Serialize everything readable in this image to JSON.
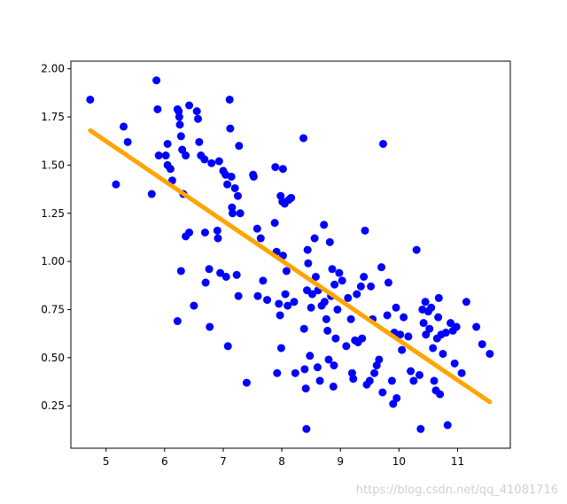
{
  "chart_data": {
    "type": "scatter",
    "xlim": [
      4.4,
      11.9
    ],
    "ylim": [
      0.03,
      2.04
    ],
    "xticks": [
      5,
      6,
      7,
      8,
      9,
      10,
      11
    ],
    "yticks": [
      0.25,
      0.5,
      0.75,
      1.0,
      1.25,
      1.5,
      1.75,
      2.0
    ],
    "grid": false,
    "legend": "none",
    "point_color": "#0000ff",
    "line_color": "#ffa500",
    "points": [
      [
        4.73,
        1.84
      ],
      [
        5.17,
        1.4
      ],
      [
        5.3,
        1.7
      ],
      [
        5.37,
        1.62
      ],
      [
        5.78,
        1.35
      ],
      [
        5.86,
        1.94
      ],
      [
        5.88,
        1.79
      ],
      [
        5.9,
        1.55
      ],
      [
        6.02,
        1.55
      ],
      [
        6.05,
        1.61
      ],
      [
        6.05,
        1.5
      ],
      [
        6.1,
        1.48
      ],
      [
        6.13,
        1.42
      ],
      [
        6.22,
        1.79
      ],
      [
        6.24,
        1.78
      ],
      [
        6.25,
        1.75
      ],
      [
        6.26,
        1.71
      ],
      [
        6.28,
        1.65
      ],
      [
        6.3,
        1.58
      ],
      [
        6.32,
        1.35
      ],
      [
        6.22,
        0.69
      ],
      [
        6.28,
        0.95
      ],
      [
        6.36,
        1.13
      ],
      [
        6.36,
        1.55
      ],
      [
        6.42,
        1.81
      ],
      [
        6.42,
        1.15
      ],
      [
        6.5,
        0.77
      ],
      [
        6.55,
        1.78
      ],
      [
        6.57,
        1.74
      ],
      [
        6.59,
        1.62
      ],
      [
        6.62,
        1.55
      ],
      [
        6.68,
        1.53
      ],
      [
        6.69,
        1.15
      ],
      [
        6.7,
        0.89
      ],
      [
        6.76,
        0.96
      ],
      [
        6.77,
        0.66
      ],
      [
        6.8,
        1.51
      ],
      [
        6.9,
        1.16
      ],
      [
        6.91,
        1.12
      ],
      [
        6.93,
        1.52
      ],
      [
        6.95,
        0.94
      ],
      [
        7.0,
        1.47
      ],
      [
        7.04,
        1.45
      ],
      [
        7.05,
        0.92
      ],
      [
        7.07,
        1.4
      ],
      [
        7.08,
        0.56
      ],
      [
        7.11,
        1.84
      ],
      [
        7.12,
        1.69
      ],
      [
        7.14,
        1.44
      ],
      [
        7.15,
        1.28
      ],
      [
        7.16,
        1.25
      ],
      [
        7.2,
        1.38
      ],
      [
        7.23,
        0.93
      ],
      [
        7.25,
        1.34
      ],
      [
        7.26,
        0.82
      ],
      [
        7.27,
        1.6
      ],
      [
        7.29,
        1.25
      ],
      [
        7.4,
        0.37
      ],
      [
        7.51,
        1.45
      ],
      [
        7.52,
        1.44
      ],
      [
        7.58,
        1.17
      ],
      [
        7.59,
        0.82
      ],
      [
        7.64,
        1.12
      ],
      [
        7.68,
        0.9
      ],
      [
        7.75,
        0.8
      ],
      [
        7.88,
        1.2
      ],
      [
        7.89,
        1.49
      ],
      [
        7.91,
        1.05
      ],
      [
        7.92,
        0.42
      ],
      [
        7.95,
        0.78
      ],
      [
        7.97,
        0.72
      ],
      [
        7.98,
        1.34
      ],
      [
        7.99,
        0.55
      ],
      [
        8.01,
        1.31
      ],
      [
        8.02,
        1.48
      ],
      [
        8.02,
        1.03
      ],
      [
        8.05,
        1.3
      ],
      [
        8.06,
        0.83
      ],
      [
        8.08,
        0.95
      ],
      [
        8.1,
        0.77
      ],
      [
        8.12,
        1.32
      ],
      [
        8.16,
        1.33
      ],
      [
        8.21,
        0.79
      ],
      [
        8.23,
        0.42
      ],
      [
        8.37,
        1.64
      ],
      [
        8.38,
        0.65
      ],
      [
        8.39,
        0.44
      ],
      [
        8.41,
        0.34
      ],
      [
        8.42,
        0.13
      ],
      [
        8.43,
        0.85
      ],
      [
        8.44,
        1.06
      ],
      [
        8.45,
        0.99
      ],
      [
        8.48,
        0.51
      ],
      [
        8.5,
        0.76
      ],
      [
        8.52,
        0.83
      ],
      [
        8.56,
        1.12
      ],
      [
        8.58,
        0.92
      ],
      [
        8.61,
        0.45
      ],
      [
        8.62,
        0.85
      ],
      [
        8.65,
        0.38
      ],
      [
        8.68,
        0.77
      ],
      [
        8.72,
        1.19
      ],
      [
        8.73,
        0.79
      ],
      [
        8.76,
        0.7
      ],
      [
        8.78,
        0.64
      ],
      [
        8.8,
        0.49
      ],
      [
        8.82,
        1.1
      ],
      [
        8.84,
        0.82
      ],
      [
        8.86,
        0.96
      ],
      [
        8.88,
        0.35
      ],
      [
        8.89,
        0.46
      ],
      [
        8.9,
        0.88
      ],
      [
        8.92,
        0.6
      ],
      [
        8.95,
        0.75
      ],
      [
        8.98,
        0.94
      ],
      [
        9.03,
        0.9
      ],
      [
        9.1,
        0.56
      ],
      [
        9.13,
        0.81
      ],
      [
        9.18,
        0.7
      ],
      [
        9.2,
        0.42
      ],
      [
        9.22,
        0.39
      ],
      [
        9.25,
        0.59
      ],
      [
        9.28,
        0.83
      ],
      [
        9.3,
        0.58
      ],
      [
        9.35,
        0.87
      ],
      [
        9.37,
        0.6
      ],
      [
        9.4,
        0.92
      ],
      [
        9.42,
        1.16
      ],
      [
        9.45,
        0.36
      ],
      [
        9.5,
        0.38
      ],
      [
        9.52,
        0.87
      ],
      [
        9.55,
        0.7
      ],
      [
        9.58,
        0.42
      ],
      [
        9.62,
        0.46
      ],
      [
        9.66,
        0.49
      ],
      [
        9.7,
        0.97
      ],
      [
        9.72,
        0.32
      ],
      [
        9.73,
        1.61
      ],
      [
        9.8,
        0.72
      ],
      [
        9.82,
        0.89
      ],
      [
        9.88,
        0.38
      ],
      [
        9.9,
        0.26
      ],
      [
        9.92,
        0.63
      ],
      [
        9.95,
        0.76
      ],
      [
        9.96,
        0.29
      ],
      [
        10.02,
        0.62
      ],
      [
        10.05,
        0.54
      ],
      [
        10.08,
        0.71
      ],
      [
        10.16,
        0.61
      ],
      [
        10.2,
        0.43
      ],
      [
        10.25,
        0.38
      ],
      [
        10.3,
        1.06
      ],
      [
        10.35,
        0.41
      ],
      [
        10.4,
        0.75
      ],
      [
        10.42,
        0.68
      ],
      [
        10.45,
        0.79
      ],
      [
        10.46,
        0.62
      ],
      [
        10.5,
        0.74
      ],
      [
        10.52,
        0.65
      ],
      [
        10.55,
        0.76
      ],
      [
        10.58,
        0.55
      ],
      [
        10.6,
        0.38
      ],
      [
        10.63,
        0.33
      ],
      [
        10.65,
        0.6
      ],
      [
        10.67,
        0.71
      ],
      [
        10.68,
        0.81
      ],
      [
        10.7,
        0.31
      ],
      [
        10.72,
        0.62
      ],
      [
        10.75,
        0.52
      ],
      [
        10.8,
        0.63
      ],
      [
        10.83,
        0.15
      ],
      [
        10.88,
        0.68
      ],
      [
        10.92,
        0.64
      ],
      [
        10.95,
        0.47
      ],
      [
        10.98,
        0.66
      ],
      [
        11.07,
        0.42
      ],
      [
        11.15,
        0.79
      ],
      [
        11.32,
        0.66
      ],
      [
        11.42,
        0.57
      ],
      [
        11.55,
        0.52
      ],
      [
        10.37,
        0.13
      ]
    ],
    "fit_line": {
      "x": [
        4.73,
        11.55
      ],
      "y": [
        1.68,
        0.27
      ]
    }
  },
  "watermark": "https://blog.csdn.net/qq_41081716"
}
